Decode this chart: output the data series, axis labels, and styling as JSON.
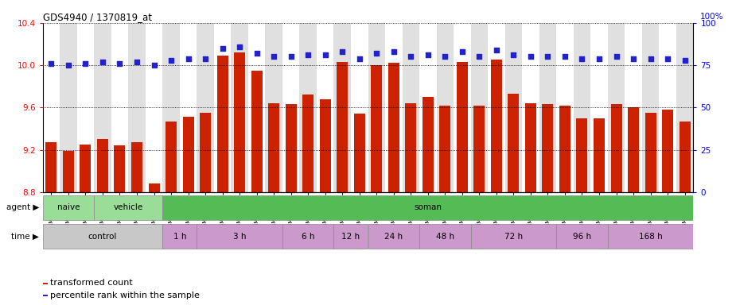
{
  "title": "GDS4940 / 1370819_at",
  "samples": [
    "GSM338857",
    "GSM338858",
    "GSM338859",
    "GSM338862",
    "GSM338864",
    "GSM338877",
    "GSM338880",
    "GSM338860",
    "GSM338861",
    "GSM338863",
    "GSM338865",
    "GSM338866",
    "GSM338867",
    "GSM338868",
    "GSM338869",
    "GSM338870",
    "GSM338871",
    "GSM338872",
    "GSM338873",
    "GSM338874",
    "GSM338875",
    "GSM338876",
    "GSM338878",
    "GSM338879",
    "GSM338881",
    "GSM338882",
    "GSM338883",
    "GSM338884",
    "GSM338885",
    "GSM338886",
    "GSM338887",
    "GSM338888",
    "GSM338889",
    "GSM338890",
    "GSM338891",
    "GSM338892",
    "GSM338893",
    "GSM338894"
  ],
  "transformed_count": [
    9.27,
    9.19,
    9.25,
    9.3,
    9.24,
    9.27,
    8.88,
    9.47,
    9.51,
    9.55,
    10.09,
    10.12,
    9.95,
    9.64,
    9.63,
    9.72,
    9.68,
    10.03,
    9.54,
    10.0,
    10.02,
    9.64,
    9.7,
    9.62,
    10.03,
    9.62,
    10.05,
    9.73,
    9.64,
    9.63,
    9.62,
    9.5,
    9.5,
    9.63,
    9.6,
    9.55,
    9.58,
    9.47
  ],
  "percentile_rank": [
    76,
    75,
    76,
    77,
    76,
    77,
    75,
    78,
    79,
    79,
    85,
    86,
    82,
    80,
    80,
    81,
    81,
    83,
    79,
    82,
    83,
    80,
    81,
    80,
    83,
    80,
    84,
    81,
    80,
    80,
    80,
    79,
    79,
    80,
    79,
    79,
    79,
    78
  ],
  "bar_color": "#cc2200",
  "dot_color": "#2222cc",
  "ylim_left": [
    8.8,
    10.4
  ],
  "ylim_right": [
    0,
    100
  ],
  "yticks_left": [
    8.8,
    9.2,
    9.6,
    10.0,
    10.4
  ],
  "yticks_right": [
    0,
    25,
    50,
    75,
    100
  ],
  "agent_groups": [
    {
      "label": "naive",
      "start": 0,
      "end": 3,
      "color": "#99dd99"
    },
    {
      "label": "vehicle",
      "start": 3,
      "end": 7,
      "color": "#99dd99"
    },
    {
      "label": "soman",
      "start": 7,
      "end": 38,
      "color": "#55bb55"
    }
  ],
  "time_colors_alt": [
    "#c8c8c8",
    "#cc99cc"
  ],
  "time_groups": [
    {
      "label": "control",
      "start": 0,
      "end": 7,
      "color": "#c8c8c8"
    },
    {
      "label": "1 h",
      "start": 7,
      "end": 9,
      "color": "#cc99cc"
    },
    {
      "label": "3 h",
      "start": 9,
      "end": 14,
      "color": "#cc99cc"
    },
    {
      "label": "6 h",
      "start": 14,
      "end": 17,
      "color": "#cc99cc"
    },
    {
      "label": "12 h",
      "start": 17,
      "end": 19,
      "color": "#cc99cc"
    },
    {
      "label": "24 h",
      "start": 19,
      "end": 22,
      "color": "#cc99cc"
    },
    {
      "label": "48 h",
      "start": 22,
      "end": 25,
      "color": "#cc99cc"
    },
    {
      "label": "72 h",
      "start": 25,
      "end": 30,
      "color": "#cc99cc"
    },
    {
      "label": "96 h",
      "start": 30,
      "end": 33,
      "color": "#cc99cc"
    },
    {
      "label": "168 h",
      "start": 33,
      "end": 38,
      "color": "#cc99cc"
    }
  ],
  "col_bg_colors": [
    "#ffffff",
    "#e0e0e0"
  ],
  "fig_width": 9.25,
  "fig_height": 3.84,
  "dpi": 100
}
